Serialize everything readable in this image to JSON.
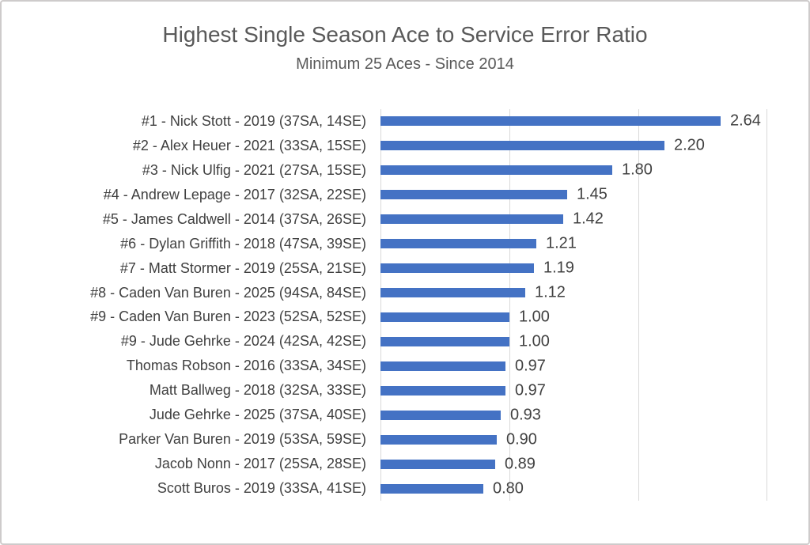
{
  "chart_data": {
    "type": "bar",
    "orientation": "horizontal",
    "title": "Highest Single Season Ace to Service Error Ratio",
    "subtitle": "Minimum 25 Aces - Since 2014",
    "categories": [
      "#1 - Nick Stott - 2019 (37SA, 14SE)",
      "#2 - Alex Heuer - 2021 (33SA, 15SE)",
      "#3 - Nick Ulfig - 2021 (27SA, 15SE)",
      "#4 - Andrew Lepage - 2017 (32SA, 22SE)",
      "#5 - James Caldwell - 2014 (37SA, 26SE)",
      "#6 - Dylan Griffith - 2018 (47SA, 39SE)",
      "#7 - Matt Stormer - 2019 (25SA, 21SE)",
      "#8 - Caden Van Buren - 2025 (94SA, 84SE)",
      "#9 - Caden Van Buren - 2023 (52SA, 52SE)",
      "#9 - Jude Gehrke - 2024 (42SA, 42SE)",
      "Thomas Robson - 2016 (33SA, 34SE)",
      "Matt Ballweg - 2018 (32SA, 33SE)",
      "Jude Gehrke - 2025 (37SA, 40SE)",
      "Parker Van Buren - 2019 (53SA, 59SE)",
      "Jacob Nonn - 2017 (25SA, 28SE)",
      "Scott Buros - 2019 (33SA, 41SE)"
    ],
    "values": [
      2.64,
      2.2,
      1.8,
      1.45,
      1.42,
      1.21,
      1.19,
      1.12,
      1.0,
      1.0,
      0.97,
      0.97,
      0.93,
      0.9,
      0.89,
      0.8
    ],
    "value_labels": [
      "2.64",
      "2.20",
      "1.80",
      "1.45",
      "1.42",
      "1.21",
      "1.19",
      "1.12",
      "1.00",
      "1.00",
      "0.97",
      "0.97",
      "0.93",
      "0.90",
      "0.89",
      "0.80"
    ],
    "xlim": [
      0,
      3
    ],
    "gridline_values": [
      0,
      1,
      2,
      3
    ],
    "grid": true,
    "legend": false,
    "data_labels": true,
    "bar_color": "#4472C4",
    "gridline_color": "#D9D9D9",
    "title_color": "#595959",
    "label_color": "#404040"
  }
}
